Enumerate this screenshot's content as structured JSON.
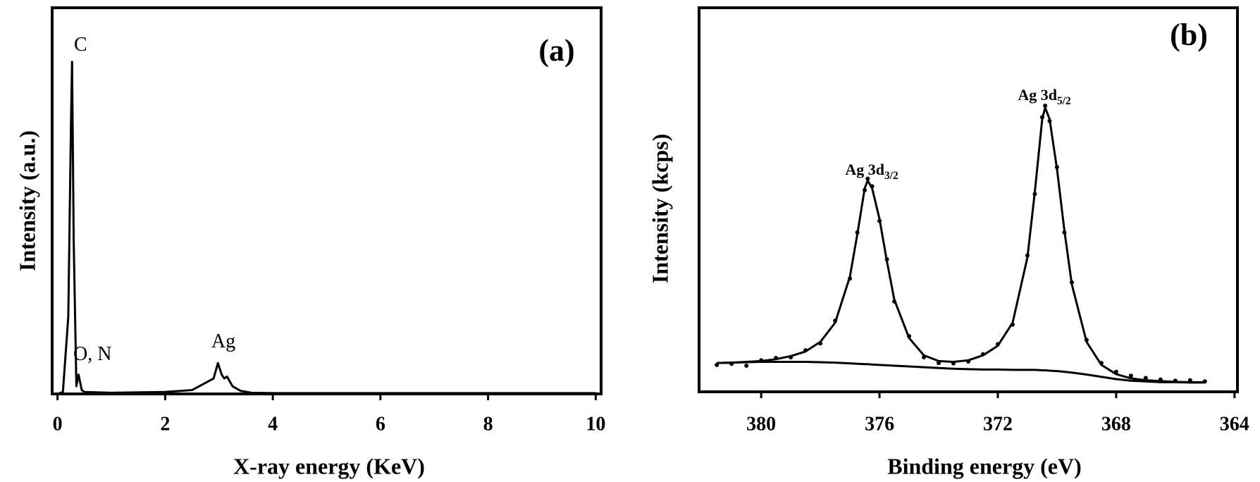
{
  "chart_data": [
    {
      "type": "line",
      "panel_label": "(a)",
      "xlabel": "X-ray energy (KeV)",
      "ylabel": "Intensity (a.u.)",
      "xlim": [
        -0.1,
        10.1
      ],
      "ylim": [
        0,
        100
      ],
      "xticks": [
        0,
        2,
        4,
        6,
        8,
        10
      ],
      "x": [
        0,
        0.1,
        0.2,
        0.25,
        0.27,
        0.3,
        0.35,
        0.39,
        0.45,
        0.5,
        1,
        2,
        2.5,
        2.9,
        2.98,
        3.05,
        3.1,
        3.15,
        3.25,
        3.4,
        3.6,
        4,
        10
      ],
      "series": [
        {
          "color": "#000000",
          "style": "line",
          "values": [
            0,
            0.5,
            20,
            70,
            86,
            40,
            2,
            5,
            1,
            0.5,
            0.3,
            0.5,
            1,
            4,
            8,
            5,
            4,
            4.5,
            2,
            0.8,
            0.3,
            0.2,
            0.2
          ]
        }
      ],
      "annotations": [
        {
          "text": "C"
        },
        {
          "text": "O, N"
        },
        {
          "text": "Ag"
        }
      ]
    },
    {
      "type": "line",
      "panel_label": "(b)",
      "xlabel": "Binding energy (eV)",
      "ylabel": "Intensity (kcps)",
      "xlim": [
        382.1,
        363.9
      ],
      "ylim": [
        0,
        100
      ],
      "xticks": [
        380,
        376,
        372,
        368,
        364
      ],
      "x": [
        381.5,
        381,
        380.5,
        380,
        379.5,
        379,
        378.5,
        378,
        377.5,
        377,
        376.75,
        376.5,
        376.4,
        376.25,
        376,
        375.75,
        375.5,
        375,
        374.5,
        374,
        373.5,
        373,
        372.5,
        372,
        371.5,
        371,
        370.75,
        370.5,
        370.4,
        370.25,
        370,
        369.75,
        369.5,
        369,
        368.5,
        368,
        367.5,
        367,
        366.5,
        366,
        365.5,
        365
      ],
      "series": [
        {
          "color": "#000000",
          "style": "line",
          "values": [
            7.5,
            7.6,
            7.8,
            8,
            8.5,
            9.3,
            10.5,
            13,
            18,
            30,
            41,
            53,
            55,
            53,
            45,
            34,
            24,
            14,
            9.5,
            8,
            7.8,
            8.2,
            9.5,
            12,
            18,
            35,
            52,
            71,
            74,
            71,
            58,
            42,
            28,
            13,
            7,
            4.6,
            3.5,
            3,
            2.8,
            2.6,
            2.5,
            2.5
          ]
        },
        {
          "color": "#000000",
          "style": "dots",
          "values": [
            7,
            7.3,
            6.8,
            8.2,
            8.8,
            9,
            10.8,
            12.6,
            18.5,
            29.5,
            41.5,
            52.5,
            55.5,
            53.5,
            44.5,
            34.5,
            23.5,
            14.5,
            9,
            7.5,
            7.4,
            7.9,
            9.8,
            12.4,
            17.5,
            35.5,
            51.5,
            71.5,
            74.5,
            70.5,
            58.5,
            41.5,
            28.5,
            13.5,
            7.5,
            5.2,
            4.2,
            3.6,
            3.2,
            2.9,
            3,
            2.7
          ]
        },
        {
          "color": "#000000",
          "style": "line",
          "values": [
            7.5,
            7.6,
            7.7,
            7.8,
            7.8,
            7.8,
            7.8,
            7.7,
            7.6,
            7.4,
            7.3,
            7.2,
            7.2,
            7.1,
            7,
            6.9,
            6.8,
            6.6,
            6.4,
            6.2,
            6,
            5.9,
            5.8,
            5.8,
            5.7,
            5.7,
            5.7,
            5.6,
            5.6,
            5.5,
            5.4,
            5.2,
            5,
            4.5,
            3.9,
            3.3,
            2.9,
            2.7,
            2.5,
            2.5,
            2.4,
            2.4
          ]
        }
      ],
      "annotations": [
        {
          "text": "Ag 3d",
          "sub": "3/2"
        },
        {
          "text": "Ag 3d",
          "sub": "5/2"
        }
      ]
    }
  ]
}
